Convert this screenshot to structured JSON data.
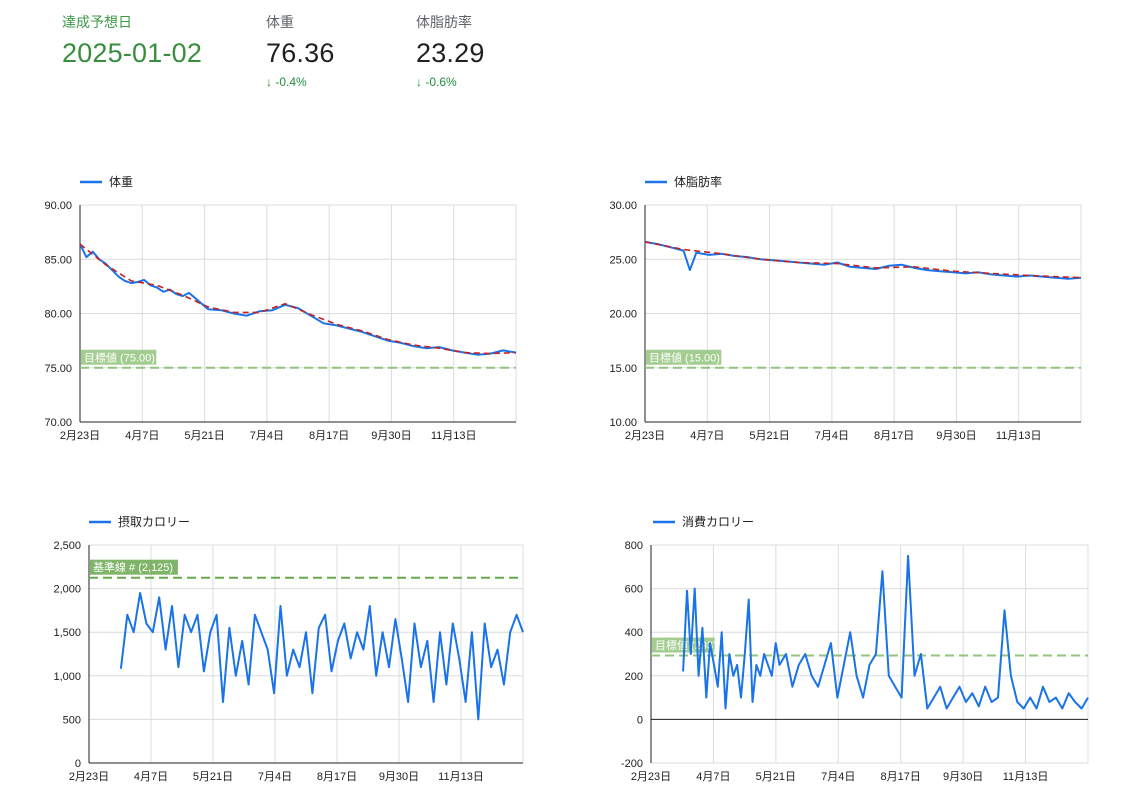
{
  "kpis": {
    "date": {
      "label": "達成予想日",
      "value": "2025-01-02"
    },
    "weight": {
      "label": "体重",
      "value": "76.36",
      "delta": "-0.4%"
    },
    "bodyfat": {
      "label": "体脂肪率",
      "value": "23.29",
      "delta": "-0.6%"
    }
  },
  "colors": {
    "series": "#1a73e8",
    "trend": "#c5221f",
    "target": "#93c47d",
    "base": "#6aa84f",
    "grid": "#dadce0"
  },
  "chart_data": [
    {
      "id": "weight",
      "type": "line",
      "legend": "体重",
      "x_ticks": [
        "2月23日",
        "4月7日",
        "5月21日",
        "7月4日",
        "8月17日",
        "9月30日",
        "11月13日"
      ],
      "y_ticks": [
        "90.00",
        "85.00",
        "80.00",
        "75.00",
        "70.00"
      ],
      "ylim": [
        70,
        90
      ],
      "xlim": [
        0,
        340
      ],
      "target": {
        "value": 75,
        "label": "目標値 (75.00)"
      },
      "points": [
        [
          0,
          86.4
        ],
        [
          5,
          85.2
        ],
        [
          10,
          85.7
        ],
        [
          15,
          85.0
        ],
        [
          20,
          84.6
        ],
        [
          25,
          84.0
        ],
        [
          30,
          83.4
        ],
        [
          35,
          83.0
        ],
        [
          40,
          82.8
        ],
        [
          45,
          82.9
        ],
        [
          50,
          83.1
        ],
        [
          55,
          82.6
        ],
        [
          60,
          82.4
        ],
        [
          65,
          82.0
        ],
        [
          70,
          82.2
        ],
        [
          75,
          81.8
        ],
        [
          80,
          81.6
        ],
        [
          85,
          81.9
        ],
        [
          90,
          81.4
        ],
        [
          100,
          80.4
        ],
        [
          110,
          80.3
        ],
        [
          120,
          80.0
        ],
        [
          130,
          79.8
        ],
        [
          140,
          80.2
        ],
        [
          150,
          80.3
        ],
        [
          160,
          80.8
        ],
        [
          170,
          80.5
        ],
        [
          180,
          79.8
        ],
        [
          190,
          79.1
        ],
        [
          200,
          78.9
        ],
        [
          210,
          78.6
        ],
        [
          220,
          78.3
        ],
        [
          230,
          77.9
        ],
        [
          240,
          77.5
        ],
        [
          250,
          77.3
        ],
        [
          260,
          77.0
        ],
        [
          270,
          76.8
        ],
        [
          280,
          76.9
        ],
        [
          290,
          76.6
        ],
        [
          300,
          76.4
        ],
        [
          310,
          76.2
        ],
        [
          320,
          76.3
        ],
        [
          330,
          76.6
        ],
        [
          340,
          76.4
        ]
      ],
      "trend": [
        [
          0,
          86.4
        ],
        [
          20,
          84.5
        ],
        [
          40,
          83.0
        ],
        [
          60,
          82.6
        ],
        [
          80,
          81.7
        ],
        [
          100,
          80.6
        ],
        [
          120,
          80.1
        ],
        [
          140,
          80.1
        ],
        [
          160,
          80.9
        ],
        [
          180,
          79.9
        ],
        [
          200,
          79.0
        ],
        [
          220,
          78.4
        ],
        [
          240,
          77.6
        ],
        [
          260,
          77.1
        ],
        [
          280,
          76.8
        ],
        [
          300,
          76.4
        ],
        [
          320,
          76.3
        ],
        [
          340,
          76.4
        ]
      ]
    },
    {
      "id": "bodyfat",
      "type": "line",
      "legend": "体脂肪率",
      "x_ticks": [
        "2月23日",
        "4月7日",
        "5月21日",
        "7月4日",
        "8月17日",
        "9月30日",
        "11月13日"
      ],
      "y_ticks": [
        "30.00",
        "25.00",
        "20.00",
        "15.00",
        "10.00"
      ],
      "ylim": [
        10,
        30
      ],
      "xlim": [
        0,
        340
      ],
      "target": {
        "value": 15,
        "label": "目標値 (15.00)"
      },
      "points": [
        [
          0,
          26.6
        ],
        [
          10,
          26.4
        ],
        [
          20,
          26.1
        ],
        [
          30,
          25.8
        ],
        [
          35,
          24.0
        ],
        [
          40,
          25.6
        ],
        [
          50,
          25.4
        ],
        [
          60,
          25.5
        ],
        [
          70,
          25.3
        ],
        [
          80,
          25.2
        ],
        [
          90,
          25.0
        ],
        [
          100,
          24.9
        ],
        [
          110,
          24.8
        ],
        [
          120,
          24.7
        ],
        [
          130,
          24.6
        ],
        [
          140,
          24.5
        ],
        [
          150,
          24.7
        ],
        [
          160,
          24.3
        ],
        [
          170,
          24.2
        ],
        [
          180,
          24.1
        ],
        [
          190,
          24.4
        ],
        [
          200,
          24.5
        ],
        [
          210,
          24.2
        ],
        [
          220,
          24.0
        ],
        [
          230,
          23.9
        ],
        [
          240,
          23.8
        ],
        [
          250,
          23.7
        ],
        [
          260,
          23.8
        ],
        [
          270,
          23.6
        ],
        [
          280,
          23.5
        ],
        [
          290,
          23.4
        ],
        [
          300,
          23.5
        ],
        [
          310,
          23.4
        ],
        [
          320,
          23.3
        ],
        [
          330,
          23.2
        ],
        [
          340,
          23.3
        ]
      ],
      "trend": [
        [
          0,
          26.6
        ],
        [
          30,
          25.9
        ],
        [
          60,
          25.5
        ],
        [
          90,
          25.0
        ],
        [
          120,
          24.7
        ],
        [
          150,
          24.6
        ],
        [
          180,
          24.2
        ],
        [
          210,
          24.3
        ],
        [
          240,
          23.9
        ],
        [
          270,
          23.7
        ],
        [
          300,
          23.5
        ],
        [
          340,
          23.3
        ]
      ]
    },
    {
      "id": "intake",
      "type": "line",
      "legend": "摂取カロリー",
      "x_ticks": [
        "2月23日",
        "4月7日",
        "5月21日",
        "7月4日",
        "8月17日",
        "9月30日",
        "11月13日"
      ],
      "y_ticks": [
        "2,500",
        "2,000",
        "1,500",
        "1,000",
        "500",
        "0"
      ],
      "ylim": [
        0,
        2500
      ],
      "xlim": [
        0,
        340
      ],
      "target": {
        "value": 2125,
        "label": "基準線 # (2,125)"
      },
      "points": [
        [
          25,
          1080
        ],
        [
          30,
          1700
        ],
        [
          35,
          1500
        ],
        [
          40,
          1950
        ],
        [
          45,
          1600
        ],
        [
          50,
          1500
        ],
        [
          55,
          1900
        ],
        [
          60,
          1300
        ],
        [
          65,
          1800
        ],
        [
          70,
          1100
        ],
        [
          75,
          1700
        ],
        [
          80,
          1500
        ],
        [
          85,
          1700
        ],
        [
          90,
          1050
        ],
        [
          95,
          1500
        ],
        [
          100,
          1700
        ],
        [
          105,
          700
        ],
        [
          110,
          1550
        ],
        [
          115,
          1000
        ],
        [
          120,
          1400
        ],
        [
          125,
          900
        ],
        [
          130,
          1700
        ],
        [
          135,
          1500
        ],
        [
          140,
          1300
        ],
        [
          145,
          800
        ],
        [
          150,
          1800
        ],
        [
          155,
          1000
        ],
        [
          160,
          1300
        ],
        [
          165,
          1100
        ],
        [
          170,
          1500
        ],
        [
          175,
          800
        ],
        [
          180,
          1550
        ],
        [
          185,
          1700
        ],
        [
          190,
          1050
        ],
        [
          195,
          1400
        ],
        [
          200,
          1600
        ],
        [
          205,
          1200
        ],
        [
          210,
          1500
        ],
        [
          215,
          1300
        ],
        [
          220,
          1800
        ],
        [
          225,
          1000
        ],
        [
          230,
          1500
        ],
        [
          235,
          1100
        ],
        [
          240,
          1650
        ],
        [
          245,
          1200
        ],
        [
          250,
          700
        ],
        [
          255,
          1600
        ],
        [
          260,
          1100
        ],
        [
          265,
          1400
        ],
        [
          270,
          700
        ],
        [
          275,
          1500
        ],
        [
          280,
          900
        ],
        [
          285,
          1600
        ],
        [
          290,
          1200
        ],
        [
          295,
          700
        ],
        [
          300,
          1500
        ],
        [
          305,
          500
        ],
        [
          310,
          1600
        ],
        [
          315,
          1100
        ],
        [
          320,
          1300
        ],
        [
          325,
          900
        ],
        [
          330,
          1500
        ],
        [
          335,
          1700
        ],
        [
          340,
          1500
        ]
      ]
    },
    {
      "id": "burned",
      "type": "line",
      "legend": "消費カロリー",
      "x_ticks": [
        "2月23日",
        "4月7日",
        "5月21日",
        "7月4日",
        "8月17日",
        "9月30日",
        "11月13日"
      ],
      "y_ticks": [
        "800",
        "600",
        "400",
        "200",
        "0",
        "-200"
      ],
      "ylim": [
        -200,
        800
      ],
      "xlim": [
        0,
        340
      ],
      "target": {
        "value": 293,
        "label": "目標値 (293)"
      },
      "points": [
        [
          25,
          220
        ],
        [
          28,
          590
        ],
        [
          31,
          300
        ],
        [
          34,
          600
        ],
        [
          37,
          200
        ],
        [
          40,
          420
        ],
        [
          43,
          100
        ],
        [
          46,
          350
        ],
        [
          49,
          250
        ],
        [
          52,
          150
        ],
        [
          55,
          400
        ],
        [
          58,
          50
        ],
        [
          61,
          300
        ],
        [
          64,
          200
        ],
        [
          67,
          250
        ],
        [
          70,
          100
        ],
        [
          73,
          300
        ],
        [
          76,
          550
        ],
        [
          79,
          80
        ],
        [
          82,
          250
        ],
        [
          85,
          200
        ],
        [
          88,
          300
        ],
        [
          91,
          250
        ],
        [
          94,
          200
        ],
        [
          97,
          350
        ],
        [
          100,
          250
        ],
        [
          105,
          300
        ],
        [
          110,
          150
        ],
        [
          115,
          250
        ],
        [
          120,
          300
        ],
        [
          125,
          200
        ],
        [
          130,
          150
        ],
        [
          135,
          250
        ],
        [
          140,
          350
        ],
        [
          145,
          100
        ],
        [
          150,
          250
        ],
        [
          155,
          400
        ],
        [
          160,
          200
        ],
        [
          165,
          100
        ],
        [
          170,
          250
        ],
        [
          175,
          300
        ],
        [
          180,
          680
        ],
        [
          185,
          200
        ],
        [
          190,
          150
        ],
        [
          195,
          100
        ],
        [
          200,
          750
        ],
        [
          205,
          200
        ],
        [
          210,
          300
        ],
        [
          215,
          50
        ],
        [
          220,
          100
        ],
        [
          225,
          150
        ],
        [
          230,
          50
        ],
        [
          235,
          100
        ],
        [
          240,
          150
        ],
        [
          245,
          80
        ],
        [
          250,
          120
        ],
        [
          255,
          60
        ],
        [
          260,
          150
        ],
        [
          265,
          80
        ],
        [
          270,
          100
        ],
        [
          275,
          500
        ],
        [
          280,
          200
        ],
        [
          285,
          80
        ],
        [
          290,
          50
        ],
        [
          295,
          100
        ],
        [
          300,
          50
        ],
        [
          305,
          150
        ],
        [
          310,
          80
        ],
        [
          315,
          100
        ],
        [
          320,
          50
        ],
        [
          325,
          120
        ],
        [
          330,
          80
        ],
        [
          335,
          50
        ],
        [
          340,
          100
        ]
      ]
    }
  ]
}
